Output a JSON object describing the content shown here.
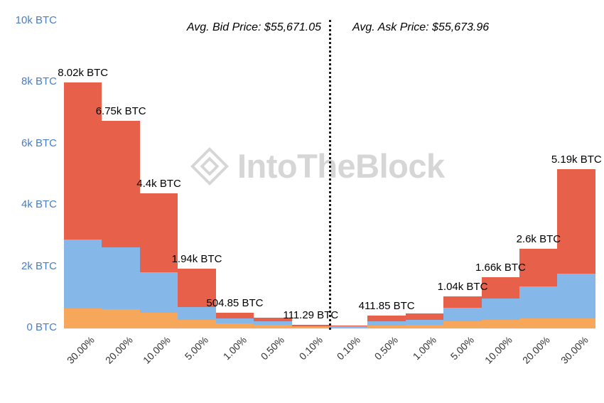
{
  "annotations": {
    "avg_bid": "Avg. Bid Price: $55,671.05",
    "avg_ask": "Avg. Ask Price: $55,673.96"
  },
  "watermark": {
    "text": "IntoTheBlock",
    "icon": "intotheblock-diamond-icon"
  },
  "colors": {
    "top_segment_red": "#E7604A",
    "middle_segment_blue": "#85B7E9",
    "bottom_segment_orange": "#F6A75A",
    "y_axis_label_blue": "#4A7EC2",
    "x_axis_label_gray": "#333333",
    "divider_black": "#1A1A1A",
    "watermark_gray": "#D6D6D6"
  },
  "chart_data": {
    "type": "bar",
    "stacked": true,
    "orientation": "vertical",
    "title": "",
    "xlabel": "",
    "ylabel": "BTC",
    "ylim": [
      0,
      10000
    ],
    "grid": false,
    "legend": "none",
    "y_ticks": [
      {
        "label": "10k BTC",
        "value": 10000
      },
      {
        "label": "8k BTC",
        "value": 8000
      },
      {
        "label": "6k BTC",
        "value": 6000
      },
      {
        "label": "4k BTC",
        "value": 4000
      },
      {
        "label": "2k BTC",
        "value": 2000
      },
      {
        "label": "0 BTC",
        "value": 0
      }
    ],
    "categories": [
      "30.00%",
      "20.00%",
      "10.00%",
      "5.00%",
      "1.00%",
      "0.50%",
      "0.10%",
      "0.10%",
      "0.50%",
      "1.00%",
      "5.00%",
      "10.00%",
      "20.00%",
      "30.00%"
    ],
    "sides": [
      "bid",
      "bid",
      "bid",
      "bid",
      "bid",
      "bid",
      "bid",
      "ask",
      "ask",
      "ask",
      "ask",
      "ask",
      "ask",
      "ask"
    ],
    "bar_value_labels": [
      "8.02k BTC",
      "6.75k BTC",
      "4.4k BTC",
      "1.94k BTC",
      "504.85 BTC",
      "",
      "111.29 BTC",
      "",
      "411.85 BTC",
      "",
      "1.04k BTC",
      "1.66k BTC",
      "2.6k BTC",
      "5.19k BTC"
    ],
    "series": [
      {
        "name": "orange",
        "color": "#F6A75A",
        "values": [
          650,
          625,
          510,
          280,
          160,
          115,
          40,
          35,
          95,
          110,
          230,
          280,
          325,
          330
        ]
      },
      {
        "name": "blue",
        "color": "#85B7E9",
        "values": [
          2240,
          2015,
          1320,
          415,
          165,
          115,
          40,
          35,
          130,
          160,
          440,
          690,
          1045,
          1450
        ]
      },
      {
        "name": "red",
        "color": "#E7604A",
        "values": [
          5130,
          4110,
          2570,
          1245,
          179.85,
          115,
          31.29,
          20,
          186.85,
          215,
          370,
          690,
          1230,
          3410
        ]
      }
    ],
    "totals_btc": [
      8020,
      6750,
      4400,
      1940,
      504.85,
      345,
      111.29,
      90,
      411.85,
      485,
      1040,
      1660,
      2600,
      5190
    ]
  }
}
